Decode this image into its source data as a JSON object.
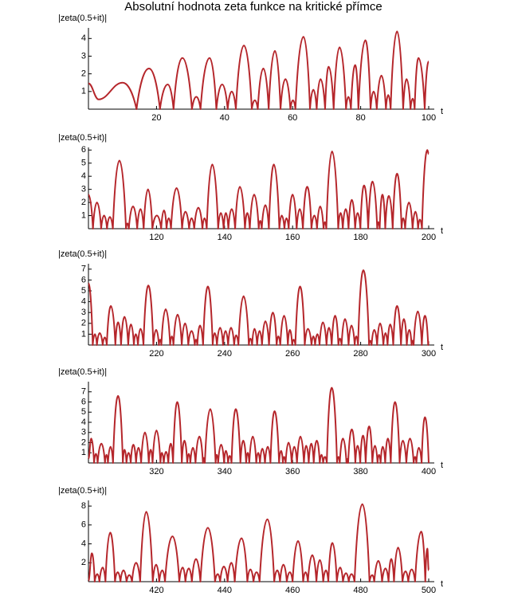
{
  "title": "Absolutní hodnota zeta funkce na kritické přímce",
  "chart_data": [
    {
      "type": "line",
      "ylabel": "|zeta(0.5+it)|",
      "xlabel": "t",
      "color": "#b5262b",
      "xlim": [
        0,
        100
      ],
      "ylim": [
        0,
        4.6
      ],
      "xticks": [
        20,
        40,
        60,
        80,
        100
      ],
      "yticks": [
        1,
        2,
        3,
        4
      ],
      "x": [
        0,
        3,
        10,
        14.13,
        17.8,
        21.02,
        23.3,
        25.01,
        27.6,
        30.42,
        31.7,
        32.94,
        35.6,
        37.59,
        39.3,
        40.92,
        42.1,
        43.33,
        45.7,
        48.01,
        48.9,
        49.77,
        51.4,
        52.97,
        54.8,
        56.45,
        57.9,
        59.35,
        60.1,
        60.83,
        63.2,
        65.11,
        66.1,
        67.08,
        68.2,
        69.55,
        70.6,
        72.07,
        73.8,
        75.7,
        76.4,
        77.14,
        78.4,
        79.34,
        81.4,
        82.91,
        83.8,
        84.74,
        86.1,
        87.43,
        88.1,
        88.81,
        90.7,
        92.49,
        93.5,
        94.65,
        95.3,
        95.87,
        97.0,
        98.83,
        100
      ],
      "values": [
        1.46,
        0.55,
        1.5,
        0,
        2.3,
        0,
        1.4,
        0,
        2.9,
        0,
        0.7,
        0,
        2.9,
        0,
        1.4,
        0,
        1.0,
        0,
        3.6,
        0,
        0.5,
        0,
        2.3,
        0,
        3.3,
        0,
        1.7,
        0,
        0.5,
        0,
        4.1,
        0,
        1.1,
        0,
        1.7,
        0,
        2.4,
        0,
        3.5,
        0,
        0.7,
        0,
        2.5,
        0,
        3.9,
        0,
        1.0,
        0,
        1.9,
        0,
        0.8,
        0,
        4.4,
        0,
        1.7,
        0,
        0.6,
        0,
        2.9,
        0,
        2.7
      ]
    },
    {
      "type": "line",
      "ylabel": "|zeta(0.5+it)|",
      "xlabel": "t",
      "color": "#b5262b",
      "xlim": [
        100,
        200
      ],
      "ylim": [
        0,
        6.2
      ],
      "xticks": [
        120,
        140,
        160,
        180,
        200
      ],
      "yticks": [
        1,
        2,
        3,
        4,
        5,
        6
      ],
      "x": [
        100,
        101.32,
        102.5,
        103.73,
        104.6,
        105.45,
        106.3,
        107.17,
        109.1,
        111.03,
        111.45,
        111.87,
        113.1,
        114.32,
        115.3,
        116.23,
        117.5,
        118.79,
        120.1,
        121.37,
        122.2,
        122.95,
        123.6,
        124.26,
        125.9,
        127.52,
        128.5,
        129.58,
        130.3,
        131.09,
        132.3,
        133.5,
        134.1,
        134.76,
        136.4,
        138.12,
        138.9,
        139.74,
        140.4,
        141.12,
        142.1,
        143.11,
        144.5,
        146.0,
        146.7,
        147.42,
        148.7,
        150.05,
        150.5,
        150.93,
        152.0,
        153.02,
        154.5,
        156.11,
        156.8,
        157.6,
        158.2,
        158.85,
        160.0,
        161.19,
        162.1,
        163.03,
        164.3,
        165.54,
        166.4,
        167.18,
        168.1,
        169.09,
        169.5,
        169.91,
        171.6,
        173.41,
        174.1,
        174.75,
        175.6,
        176.44,
        177.4,
        178.38,
        179.1,
        179.92,
        181.0,
        182.21,
        183.5,
        184.87,
        185.2,
        185.6,
        186.4,
        187.23,
        188.3,
        189.42,
        190.7,
        192.03,
        192.5,
        193.08,
        194.2,
        195.27,
        196.1,
        196.88,
        197.4,
        198.02,
        199.6,
        200
      ],
      "values": [
        2.6,
        0,
        2.0,
        0,
        1.0,
        0,
        0.9,
        0,
        5.2,
        0,
        0.4,
        0,
        1.7,
        0,
        1.5,
        0,
        3.0,
        0,
        1.0,
        0,
        1.4,
        0,
        0.8,
        0,
        3.1,
        0,
        1.3,
        0,
        0.8,
        0,
        1.6,
        0,
        0.8,
        0,
        4.9,
        0,
        1.2,
        0,
        1.2,
        0,
        1.5,
        0,
        3.2,
        0,
        1.2,
        0,
        2.6,
        0,
        0.6,
        0,
        1.8,
        0,
        4.9,
        0,
        1.0,
        0,
        0.8,
        0,
        2.6,
        0,
        1.5,
        0,
        3.2,
        0,
        1.0,
        0,
        1.7,
        0,
        0.5,
        0,
        5.9,
        0,
        1.2,
        0,
        1.5,
        0,
        2.2,
        0,
        1.2,
        0,
        3.3,
        0,
        3.6,
        0,
        0.5,
        0,
        2.6,
        0,
        2.5,
        0,
        4.2,
        0,
        0.8,
        0,
        2.0,
        0,
        1.3,
        0,
        0.7,
        0,
        6.0,
        5.7
      ]
    },
    {
      "type": "line",
      "ylabel": "|zeta(0.5+it)|",
      "xlabel": "t",
      "color": "#b5262b",
      "xlim": [
        200,
        300
      ],
      "ylim": [
        0,
        7.5
      ],
      "xticks": [
        220,
        240,
        260,
        280,
        300
      ],
      "yticks": [
        1,
        2,
        3,
        4,
        5,
        6,
        7
      ],
      "x": [
        200,
        201.26,
        201.9,
        202.49,
        203.3,
        204.19,
        204.8,
        205.39,
        206.6,
        207.91,
        208.7,
        209.58,
        210.6,
        211.69,
        212.5,
        213.35,
        213.9,
        214.55,
        215.3,
        216.17,
        217.6,
        219.07,
        219.9,
        220.71,
        221.1,
        221.43,
        222.7,
        224.01,
        224.5,
        224.98,
        226.2,
        227.42,
        228.4,
        229.34,
        230.3,
        231.25,
        231.6,
        231.99,
        232.8,
        233.69,
        235.1,
        236.52,
        237.1,
        237.77,
        238.7,
        239.56,
        240.3,
        241.05,
        241.9,
        242.82,
        243.4,
        244.07,
        245.6,
        247.14,
        247.6,
        248.1,
        248.8,
        249.57,
        250.3,
        251.01,
        252.0,
        253.07,
        254.2,
        255.31,
        255.8,
        256.38,
        257.5,
        258.61,
        259.2,
        259.87,
        260.3,
        260.81,
        262.2,
        263.57,
        264.5,
        265.56,
        266.1,
        266.61,
        267.3,
        267.92,
        268.9,
        269.97,
        270.7,
        271.49,
        272.5,
        273.46,
        273.9,
        274.39,
        275.4,
        276.45,
        277.3,
        278.25,
        278.7,
        279.23,
        280.8,
        282.47,
        282.8,
        283.21,
        284.0,
        284.84,
        285.7,
        286.67,
        287.3,
        287.91,
        288.7,
        289.58,
        290.7,
        291.85,
        292.7,
        293.56,
        294.3,
        294.97,
        295.3,
        295.57,
        296.8,
        297.98,
        298.9,
        299.84,
        300
      ],
      "values": [
        5.7,
        0,
        1.0,
        0,
        1.1,
        0,
        0.7,
        0,
        3.6,
        0,
        2.1,
        0,
        2.6,
        0,
        1.9,
        0,
        1.0,
        0,
        1.5,
        0,
        5.5,
        0,
        1.4,
        0,
        0.5,
        0,
        3.3,
        0,
        0.8,
        0,
        2.8,
        0,
        2.0,
        0,
        1.3,
        0,
        0.5,
        0,
        1.8,
        0,
        5.4,
        0,
        1.1,
        0,
        1.6,
        0,
        1.3,
        0,
        1.6,
        0,
        0.9,
        0,
        4.5,
        0,
        0.6,
        0,
        1.5,
        0,
        1.3,
        0,
        2.2,
        0,
        3.0,
        0,
        0.8,
        0,
        2.7,
        0,
        1.4,
        0,
        0.5,
        0,
        5.4,
        0,
        1.5,
        0,
        0.8,
        0,
        1.0,
        0,
        2.1,
        0,
        1.6,
        0,
        2.7,
        0,
        0.6,
        0,
        2.4,
        0,
        1.8,
        0,
        0.8,
        0,
        6.9,
        0,
        0.4,
        0,
        1.4,
        0,
        2.0,
        0,
        1.1,
        0,
        1.9,
        0,
        3.6,
        0,
        2.4,
        0,
        1.4,
        0,
        0.4,
        0,
        3.1,
        0,
        2.7,
        0,
        0.4
      ]
    },
    {
      "type": "line",
      "ylabel": "|zeta(0.5+it)|",
      "xlabel": "t",
      "color": "#b5262b",
      "xlim": [
        300,
        400
      ],
      "ylim": [
        0,
        8.0
      ],
      "xticks": [
        320,
        340,
        360,
        380,
        400
      ],
      "yticks": [
        1,
        2,
        3,
        4,
        5,
        6,
        7
      ],
      "x": [
        300,
        300.8,
        301.65,
        302.2,
        302.7,
        303.8,
        304.86,
        305.3,
        305.73,
        306.5,
        307.22,
        308.7,
        310.11,
        310.6,
        311.17,
        311.8,
        312.43,
        313.2,
        313.99,
        314.7,
        315.48,
        316.6,
        317.73,
        318.3,
        318.85,
        320.0,
        321.16,
        321.6,
        322.14,
        322.8,
        323.47,
        324.2,
        324.86,
        326.1,
        327.44,
        328.2,
        329.03,
        329.5,
        329.95,
        330.7,
        331.47,
        332.6,
        333.65,
        333.9,
        334.21,
        335.8,
        337.37,
        337.7,
        338.12,
        339.0,
        339.86,
        340.4,
        341.04,
        341.5,
        342.05,
        343.3,
        344.66,
        345.5,
        346.35,
        346.8,
        347.27,
        348.3,
        349.32,
        349.9,
        350.41,
        351.1,
        351.88,
        352.7,
        353.49,
        354.7,
        356.02,
        356.6,
        357.15,
        357.5,
        357.95,
        358.8,
        359.74,
        360.5,
        361.29,
        362.3,
        363.33,
        364.0,
        364.74,
        365.5,
        366.21,
        367.1,
        367.99,
        368.5,
        368.97,
        369.5,
        370.05,
        371.5,
        373.06,
        373.5,
        373.86,
        374.8,
        375.83,
        376.1,
        376.32,
        377.4,
        378.44,
        379.1,
        379.87,
        380.7,
        381.48,
        382.5,
        383.44,
        384.2,
        384.96,
        385.4,
        385.86,
        386.5,
        387.22,
        388.0,
        388.85,
        390.1,
        391.46,
        392.4,
        393.43,
        394.5,
        395.58,
        396.0,
        396.38,
        397.1,
        397.92,
        398.9,
        400
      ],
      "values": [
        0.4,
        2.4,
        0,
        0.9,
        0,
        1.9,
        0,
        0.8,
        0,
        1.6,
        0,
        6.6,
        0,
        1.3,
        0,
        1.0,
        0,
        1.8,
        0,
        1.5,
        0,
        3.0,
        0,
        1.3,
        0,
        3.2,
        0,
        1.0,
        0,
        1.1,
        0,
        1.9,
        0,
        6.0,
        0,
        2.2,
        0,
        0.9,
        0,
        1.5,
        0,
        2.6,
        0,
        0.5,
        0,
        5.3,
        0,
        0.8,
        0,
        1.8,
        0,
        1.2,
        0,
        0.7,
        0,
        5.3,
        0,
        2.2,
        0,
        1.0,
        0,
        2.6,
        0,
        1.0,
        0,
        1.4,
        0,
        1.6,
        0,
        5.1,
        0,
        1.2,
        0,
        0.6,
        0,
        2.0,
        0,
        1.6,
        0,
        2.6,
        0,
        1.7,
        0,
        1.9,
        0,
        2.2,
        0,
        0.8,
        0,
        0.6,
        0,
        7.4,
        0,
        0.6,
        0,
        2.4,
        0,
        0.4,
        0,
        3.3,
        0,
        1.7,
        0,
        2.7,
        0,
        3.6,
        0,
        1.7,
        0,
        0.8,
        0,
        1.6,
        0,
        2.4,
        0,
        6.0,
        0,
        2.2,
        0,
        2.4,
        0,
        0.6,
        0,
        1.5,
        0,
        4.5,
        0
      ]
    },
    {
      "type": "line",
      "ylabel": "|zeta(0.5+it)|",
      "xlabel": "t",
      "color": "#b5262b",
      "xlim": [
        400,
        500
      ],
      "ylim": [
        0,
        8.6
      ],
      "xticks": [
        420,
        440,
        460,
        480,
        500
      ],
      "yticks": [
        2,
        4,
        6,
        8
      ],
      "x": [
        400,
        401.0,
        401.84,
        402.6,
        403.23,
        404.2,
        405.0,
        406.4,
        407.8,
        408.6,
        409.4,
        410.3,
        411.2,
        412.0,
        412.8,
        414.0,
        415.2,
        417.0,
        418.9,
        419.9,
        420.8,
        421.7,
        422.5,
        424.7,
        426.7,
        427.7,
        428.5,
        429.5,
        430.4,
        431.6,
        432.9,
        435.1,
        437.2,
        438.0,
        438.7,
        439.8,
        440.9,
        442.0,
        443.0,
        445.0,
        446.7,
        447.6,
        448.5,
        449.4,
        450.3,
        452.6,
        454.6,
        455.5,
        456.3,
        457.3,
        458.3,
        459.2,
        460.0,
        461.6,
        463.1,
        463.8,
        464.5,
        465.8,
        467.0,
        468.0,
        469.0,
        469.8,
        470.5,
        471.7,
        473.0,
        474.0,
        474.8,
        475.7,
        476.5,
        477.3,
        478.2,
        480.5,
        482.6,
        483.4,
        484.0,
        485.2,
        486.3,
        487.3,
        488.2,
        489.0,
        489.8,
        491.0,
        492.3,
        493.2,
        494.0,
        495.0,
        496.0,
        497.8,
        499.0,
        499.6,
        500
      ],
      "values": [
        0.1,
        3.0,
        0,
        0.8,
        0,
        1.5,
        0,
        5.2,
        0,
        1.0,
        0,
        1.2,
        0,
        0.7,
        0,
        2.0,
        0,
        7.4,
        0,
        1.8,
        0,
        1.2,
        0,
        4.8,
        0,
        1.5,
        0,
        1.4,
        0,
        2.4,
        0,
        5.7,
        0,
        0.8,
        0,
        1.6,
        0,
        2.0,
        0,
        4.6,
        0,
        1.3,
        0,
        1.0,
        0,
        6.6,
        0,
        1.2,
        0,
        1.8,
        0,
        1.0,
        0,
        4.3,
        0,
        1.0,
        0,
        2.8,
        0,
        2.3,
        0,
        1.2,
        0,
        4.1,
        0,
        1.5,
        0,
        0.9,
        0,
        0.8,
        0,
        8.2,
        0,
        0.7,
        0,
        2.2,
        0,
        1.4,
        0,
        2.4,
        0,
        3.6,
        0,
        1.1,
        0,
        1.3,
        0,
        5.3,
        0,
        3.5,
        1.2
      ]
    }
  ]
}
